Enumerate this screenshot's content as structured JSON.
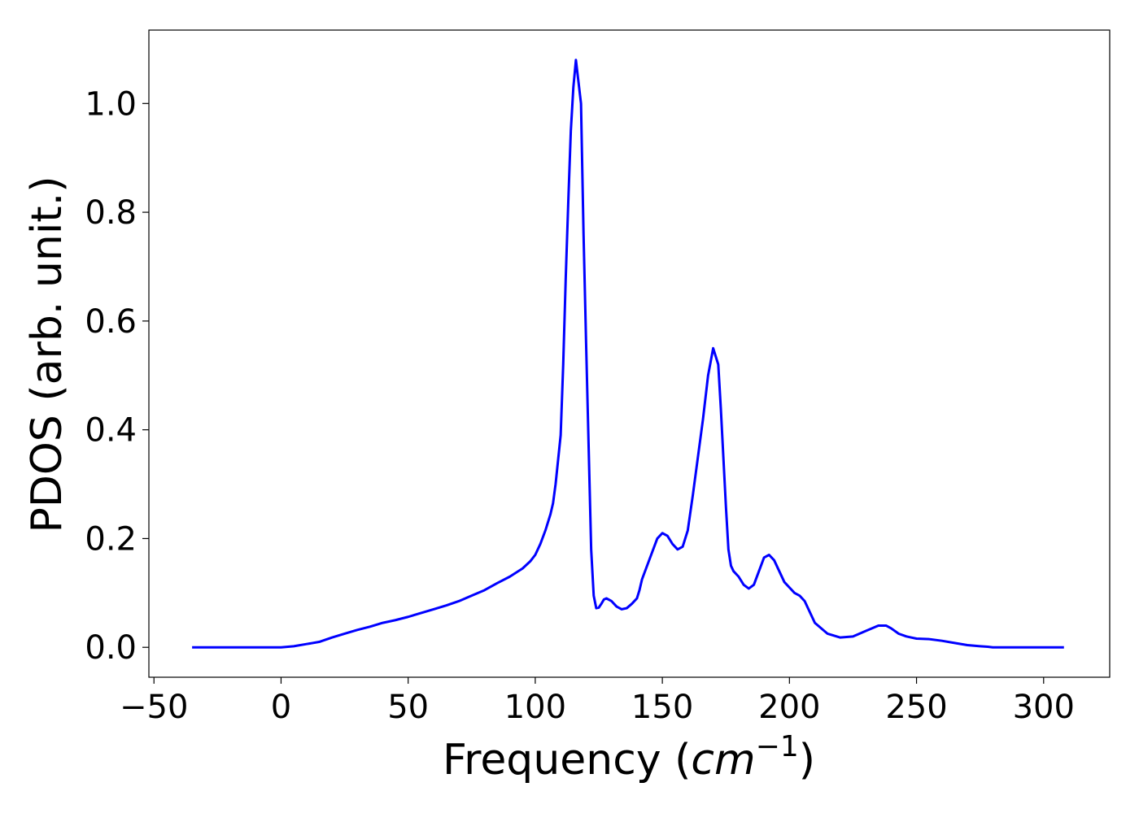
{
  "chart_data": {
    "type": "line",
    "title": "",
    "xlabel_prefix": "Frequency (",
    "xlabel_unit": "cm",
    "xlabel_exponent": "−1",
    "xlabel_suffix": ")",
    "ylabel": "PDOS (arb. unit.)",
    "xlim": [
      -52,
      326
    ],
    "ylim": [
      -0.055,
      1.135
    ],
    "xticks": [
      -50,
      0,
      50,
      100,
      150,
      200,
      250,
      300
    ],
    "xtick_labels": [
      "−50",
      "0",
      "50",
      "100",
      "150",
      "200",
      "250",
      "300"
    ],
    "yticks": [
      0.0,
      0.2,
      0.4,
      0.6,
      0.8,
      1.0
    ],
    "ytick_labels": [
      "0.0",
      "0.2",
      "0.4",
      "0.6",
      "0.8",
      "1.0"
    ],
    "grid": false,
    "series": [
      {
        "color": "#0000ff",
        "x": [
          -35,
          -20,
          -10,
          0,
          5,
          10,
          15,
          20,
          25,
          30,
          35,
          40,
          45,
          50,
          55,
          60,
          65,
          70,
          75,
          80,
          85,
          90,
          95,
          98,
          100,
          102,
          104,
          106,
          107,
          108,
          110,
          111,
          112,
          113,
          114,
          115,
          116,
          117,
          118,
          119,
          120,
          121,
          122,
          123,
          124,
          125,
          126,
          127,
          128,
          130,
          132,
          134,
          136,
          138,
          140,
          141,
          142,
          144,
          146,
          148,
          150,
          152,
          154,
          156,
          158,
          160,
          162,
          164,
          166,
          168,
          170,
          172,
          173,
          174,
          175,
          176,
          177,
          178,
          180,
          182,
          184,
          186,
          188,
          190,
          192,
          194,
          196,
          198,
          200,
          202,
          204,
          206,
          208,
          210,
          215,
          220,
          225,
          230,
          235,
          238,
          240,
          243,
          246,
          248,
          250,
          255,
          260,
          265,
          270,
          275,
          278,
          280,
          283,
          285,
          290,
          300,
          308
        ],
        "y": [
          0.0,
          0.0,
          0.0,
          0.0,
          0.002,
          0.006,
          0.01,
          0.018,
          0.025,
          0.032,
          0.038,
          0.045,
          0.05,
          0.056,
          0.063,
          0.07,
          0.077,
          0.085,
          0.095,
          0.105,
          0.118,
          0.13,
          0.145,
          0.158,
          0.17,
          0.19,
          0.215,
          0.245,
          0.265,
          0.3,
          0.39,
          0.52,
          0.68,
          0.82,
          0.95,
          1.03,
          1.08,
          1.04,
          1.0,
          0.76,
          0.56,
          0.37,
          0.18,
          0.095,
          0.072,
          0.073,
          0.08,
          0.088,
          0.09,
          0.085,
          0.075,
          0.07,
          0.072,
          0.08,
          0.09,
          0.105,
          0.125,
          0.15,
          0.175,
          0.2,
          0.21,
          0.205,
          0.19,
          0.18,
          0.185,
          0.215,
          0.28,
          0.35,
          0.42,
          0.5,
          0.55,
          0.52,
          0.44,
          0.35,
          0.26,
          0.18,
          0.15,
          0.14,
          0.13,
          0.115,
          0.108,
          0.115,
          0.14,
          0.165,
          0.17,
          0.16,
          0.14,
          0.12,
          0.11,
          0.1,
          0.095,
          0.085,
          0.065,
          0.045,
          0.025,
          0.018,
          0.02,
          0.03,
          0.04,
          0.04,
          0.035,
          0.025,
          0.02,
          0.018,
          0.016,
          0.015,
          0.012,
          0.008,
          0.004,
          0.002,
          0.001,
          0.0,
          0.0,
          0.0,
          0.0,
          0.0,
          0.0
        ]
      }
    ]
  }
}
